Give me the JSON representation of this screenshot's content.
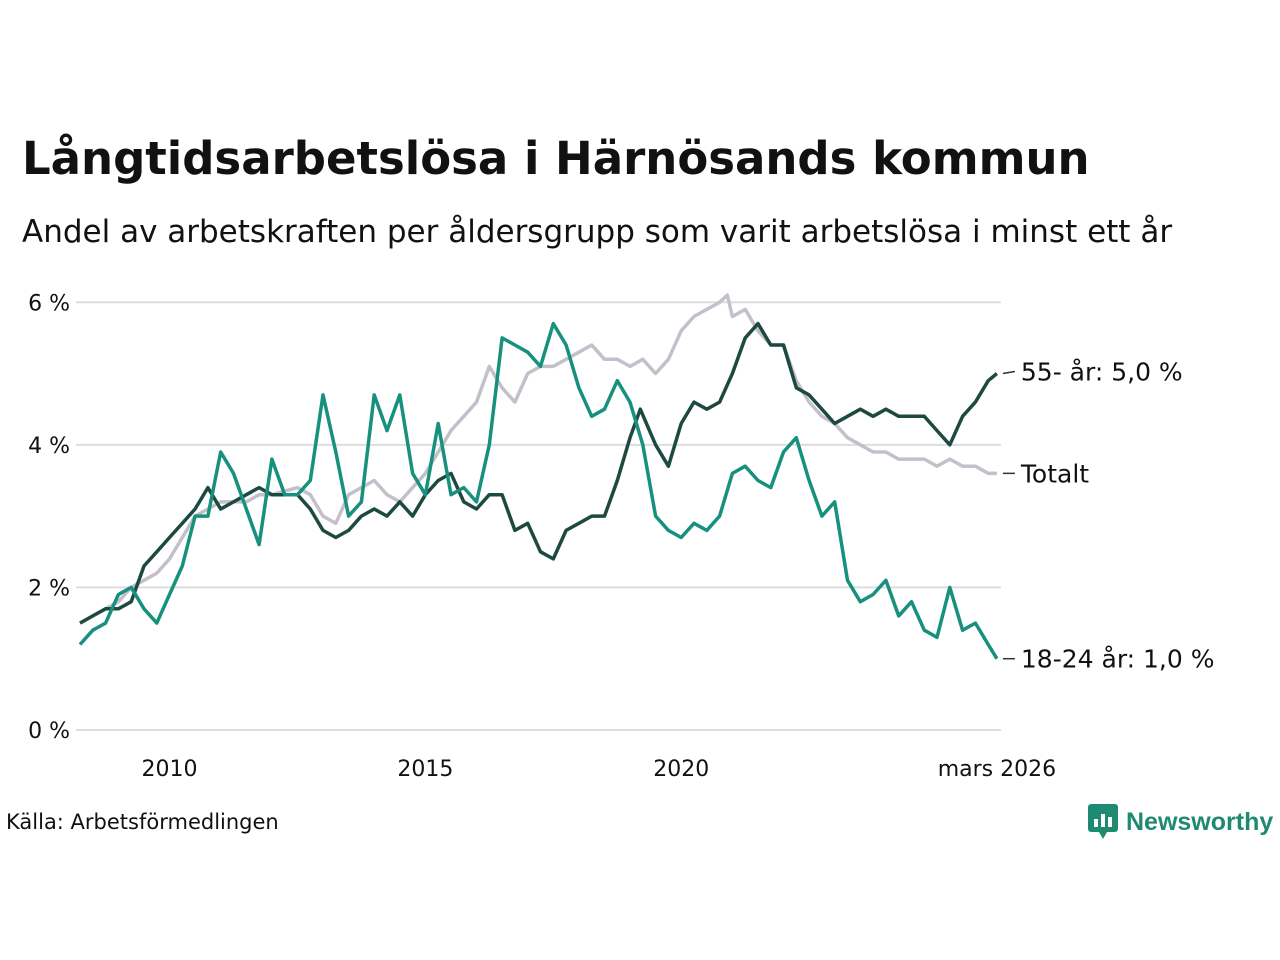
{
  "header": {
    "title": "Långtidsarbetslösa i Härnösands kommun",
    "subtitle": "Andel av arbetskraften per åldersgrupp som varit arbetslösa i minst ett år"
  },
  "footer": {
    "source": "Källa: Arbetsförmedlingen",
    "brand": "Newsworthy",
    "brand_icon": "newsworthy-logo-icon"
  },
  "colors": {
    "totalt": "#c4c0cb",
    "age_55": "#1d4a40",
    "age_18_24": "#17917e",
    "grid": "#dddddd",
    "brand": "#1f8a72"
  },
  "chart_data": {
    "type": "line",
    "title": "Långtidsarbetslösa i Härnösands kommun",
    "subtitle": "Andel av arbetskraften per åldersgrupp som varit arbetslösa i minst ett år",
    "xlabel": "",
    "ylabel": "",
    "x_range": [
      2008.25,
      2026.25
    ],
    "ylim": [
      0,
      6.2
    ],
    "y_ticks": [
      {
        "value": 0,
        "label": "0 %"
      },
      {
        "value": 2,
        "label": "2 %"
      },
      {
        "value": 4,
        "label": "4 %"
      },
      {
        "value": 6,
        "label": "6 %"
      }
    ],
    "x_ticks": [
      {
        "value": 2010,
        "label": "2010"
      },
      {
        "value": 2015,
        "label": "2015"
      },
      {
        "value": 2020,
        "label": "2020"
      },
      {
        "value": 2026.17,
        "label": "mars 2026"
      }
    ],
    "grid": true,
    "series": [
      {
        "name": "Totalt",
        "key": "totalt",
        "end_label": "Totalt",
        "points": [
          [
            2008.25,
            1.5
          ],
          [
            2008.5,
            1.6
          ],
          [
            2008.75,
            1.7
          ],
          [
            2009.0,
            1.8
          ],
          [
            2009.25,
            2.0
          ],
          [
            2009.5,
            2.1
          ],
          [
            2009.75,
            2.2
          ],
          [
            2010.0,
            2.4
          ],
          [
            2010.25,
            2.7
          ],
          [
            2010.5,
            3.0
          ],
          [
            2010.75,
            3.1
          ],
          [
            2011.0,
            3.2
          ],
          [
            2011.25,
            3.2
          ],
          [
            2011.5,
            3.2
          ],
          [
            2011.75,
            3.3
          ],
          [
            2012.0,
            3.3
          ],
          [
            2012.5,
            3.4
          ],
          [
            2012.75,
            3.3
          ],
          [
            2013.0,
            3.0
          ],
          [
            2013.25,
            2.9
          ],
          [
            2013.5,
            3.3
          ],
          [
            2013.75,
            3.4
          ],
          [
            2014.0,
            3.5
          ],
          [
            2014.25,
            3.3
          ],
          [
            2014.5,
            3.2
          ],
          [
            2014.75,
            3.4
          ],
          [
            2015.0,
            3.6
          ],
          [
            2015.25,
            3.9
          ],
          [
            2015.5,
            4.2
          ],
          [
            2015.75,
            4.4
          ],
          [
            2016.0,
            4.6
          ],
          [
            2016.25,
            5.1
          ],
          [
            2016.5,
            4.8
          ],
          [
            2016.75,
            4.6
          ],
          [
            2017.0,
            5.0
          ],
          [
            2017.25,
            5.1
          ],
          [
            2017.5,
            5.1
          ],
          [
            2017.75,
            5.2
          ],
          [
            2018.0,
            5.3
          ],
          [
            2018.25,
            5.4
          ],
          [
            2018.5,
            5.2
          ],
          [
            2018.75,
            5.2
          ],
          [
            2019.0,
            5.1
          ],
          [
            2019.25,
            5.2
          ],
          [
            2019.5,
            5.0
          ],
          [
            2019.75,
            5.2
          ],
          [
            2020.0,
            5.6
          ],
          [
            2020.25,
            5.8
          ],
          [
            2020.5,
            5.9
          ],
          [
            2020.75,
            6.0
          ],
          [
            2020.9,
            6.1
          ],
          [
            2021.0,
            5.8
          ],
          [
            2021.25,
            5.9
          ],
          [
            2021.5,
            5.6
          ],
          [
            2021.75,
            5.4
          ],
          [
            2022.0,
            5.4
          ],
          [
            2022.25,
            4.9
          ],
          [
            2022.5,
            4.6
          ],
          [
            2022.75,
            4.4
          ],
          [
            2023.0,
            4.3
          ],
          [
            2023.25,
            4.1
          ],
          [
            2023.5,
            4.0
          ],
          [
            2023.75,
            3.9
          ],
          [
            2024.0,
            3.9
          ],
          [
            2024.25,
            3.8
          ],
          [
            2024.5,
            3.8
          ],
          [
            2024.75,
            3.8
          ],
          [
            2025.0,
            3.7
          ],
          [
            2025.25,
            3.8
          ],
          [
            2025.5,
            3.7
          ],
          [
            2025.75,
            3.7
          ],
          [
            2026.0,
            3.6
          ],
          [
            2026.17,
            3.6
          ]
        ]
      },
      {
        "name": "55- år",
        "key": "age_55",
        "end_label": "55- år: 5,0 %",
        "points": [
          [
            2008.25,
            1.5
          ],
          [
            2008.5,
            1.6
          ],
          [
            2008.75,
            1.7
          ],
          [
            2009.0,
            1.7
          ],
          [
            2009.25,
            1.8
          ],
          [
            2009.5,
            2.3
          ],
          [
            2009.75,
            2.5
          ],
          [
            2010.0,
            2.7
          ],
          [
            2010.25,
            2.9
          ],
          [
            2010.5,
            3.1
          ],
          [
            2010.75,
            3.4
          ],
          [
            2011.0,
            3.1
          ],
          [
            2011.25,
            3.2
          ],
          [
            2011.5,
            3.3
          ],
          [
            2011.75,
            3.4
          ],
          [
            2012.0,
            3.3
          ],
          [
            2012.25,
            3.3
          ],
          [
            2012.5,
            3.3
          ],
          [
            2012.75,
            3.1
          ],
          [
            2013.0,
            2.8
          ],
          [
            2013.25,
            2.7
          ],
          [
            2013.5,
            2.8
          ],
          [
            2013.75,
            3.0
          ],
          [
            2014.0,
            3.1
          ],
          [
            2014.25,
            3.0
          ],
          [
            2014.5,
            3.2
          ],
          [
            2014.75,
            3.0
          ],
          [
            2015.0,
            3.3
          ],
          [
            2015.25,
            3.5
          ],
          [
            2015.5,
            3.6
          ],
          [
            2015.75,
            3.2
          ],
          [
            2016.0,
            3.1
          ],
          [
            2016.25,
            3.3
          ],
          [
            2016.5,
            3.3
          ],
          [
            2016.75,
            2.8
          ],
          [
            2017.0,
            2.9
          ],
          [
            2017.25,
            2.5
          ],
          [
            2017.5,
            2.4
          ],
          [
            2017.75,
            2.8
          ],
          [
            2018.0,
            2.9
          ],
          [
            2018.25,
            3.0
          ],
          [
            2018.5,
            3.0
          ],
          [
            2018.75,
            3.5
          ],
          [
            2019.0,
            4.1
          ],
          [
            2019.2,
            4.5
          ],
          [
            2019.5,
            4.0
          ],
          [
            2019.75,
            3.7
          ],
          [
            2020.0,
            4.3
          ],
          [
            2020.25,
            4.6
          ],
          [
            2020.5,
            4.5
          ],
          [
            2020.75,
            4.6
          ],
          [
            2021.0,
            5.0
          ],
          [
            2021.25,
            5.5
          ],
          [
            2021.5,
            5.7
          ],
          [
            2021.75,
            5.4
          ],
          [
            2022.0,
            5.4
          ],
          [
            2022.25,
            4.8
          ],
          [
            2022.5,
            4.7
          ],
          [
            2022.75,
            4.5
          ],
          [
            2023.0,
            4.3
          ],
          [
            2023.25,
            4.4
          ],
          [
            2023.5,
            4.5
          ],
          [
            2023.75,
            4.4
          ],
          [
            2024.0,
            4.5
          ],
          [
            2024.25,
            4.4
          ],
          [
            2024.5,
            4.4
          ],
          [
            2024.75,
            4.4
          ],
          [
            2025.0,
            4.2
          ],
          [
            2025.25,
            4.0
          ],
          [
            2025.5,
            4.4
          ],
          [
            2025.75,
            4.6
          ],
          [
            2026.0,
            4.9
          ],
          [
            2026.17,
            5.0
          ]
        ]
      },
      {
        "name": "18-24 år",
        "key": "age_18_24",
        "end_label": "18-24 år: 1,0 %",
        "points": [
          [
            2008.25,
            1.2
          ],
          [
            2008.5,
            1.4
          ],
          [
            2008.75,
            1.5
          ],
          [
            2009.0,
            1.9
          ],
          [
            2009.25,
            2.0
          ],
          [
            2009.5,
            1.7
          ],
          [
            2009.75,
            1.5
          ],
          [
            2010.0,
            1.9
          ],
          [
            2010.25,
            2.3
          ],
          [
            2010.5,
            3.0
          ],
          [
            2010.75,
            3.0
          ],
          [
            2011.0,
            3.9
          ],
          [
            2011.25,
            3.6
          ],
          [
            2011.5,
            3.1
          ],
          [
            2011.75,
            2.6
          ],
          [
            2012.0,
            3.8
          ],
          [
            2012.25,
            3.3
          ],
          [
            2012.5,
            3.3
          ],
          [
            2012.75,
            3.5
          ],
          [
            2013.0,
            4.7
          ],
          [
            2013.25,
            3.9
          ],
          [
            2013.5,
            3.0
          ],
          [
            2013.75,
            3.2
          ],
          [
            2014.0,
            4.7
          ],
          [
            2014.25,
            4.2
          ],
          [
            2014.5,
            4.7
          ],
          [
            2014.75,
            3.6
          ],
          [
            2015.0,
            3.3
          ],
          [
            2015.25,
            4.3
          ],
          [
            2015.5,
            3.3
          ],
          [
            2015.75,
            3.4
          ],
          [
            2016.0,
            3.2
          ],
          [
            2016.25,
            4.0
          ],
          [
            2016.5,
            5.5
          ],
          [
            2016.75,
            5.4
          ],
          [
            2017.0,
            5.3
          ],
          [
            2017.25,
            5.1
          ],
          [
            2017.5,
            5.7
          ],
          [
            2017.75,
            5.4
          ],
          [
            2018.0,
            4.8
          ],
          [
            2018.25,
            4.4
          ],
          [
            2018.5,
            4.5
          ],
          [
            2018.75,
            4.9
          ],
          [
            2019.0,
            4.6
          ],
          [
            2019.25,
            4.0
          ],
          [
            2019.5,
            3.0
          ],
          [
            2019.75,
            2.8
          ],
          [
            2020.0,
            2.7
          ],
          [
            2020.25,
            2.9
          ],
          [
            2020.5,
            2.8
          ],
          [
            2020.75,
            3.0
          ],
          [
            2021.0,
            3.6
          ],
          [
            2021.25,
            3.7
          ],
          [
            2021.5,
            3.5
          ],
          [
            2021.75,
            3.4
          ],
          [
            2022.0,
            3.9
          ],
          [
            2022.25,
            4.1
          ],
          [
            2022.5,
            3.5
          ],
          [
            2022.75,
            3.0
          ],
          [
            2023.0,
            3.2
          ],
          [
            2023.25,
            2.1
          ],
          [
            2023.5,
            1.8
          ],
          [
            2023.75,
            1.9
          ],
          [
            2024.0,
            2.1
          ],
          [
            2024.25,
            1.6
          ],
          [
            2024.5,
            1.8
          ],
          [
            2024.75,
            1.4
          ],
          [
            2025.0,
            1.3
          ],
          [
            2025.25,
            2.0
          ],
          [
            2025.5,
            1.4
          ],
          [
            2025.75,
            1.5
          ],
          [
            2026.0,
            1.2
          ],
          [
            2026.17,
            1.0
          ]
        ]
      }
    ]
  }
}
